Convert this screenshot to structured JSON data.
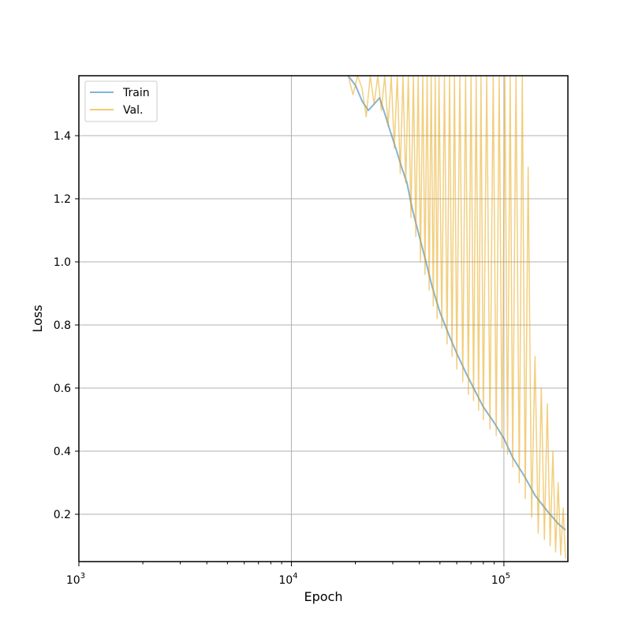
{
  "chart_data": {
    "type": "line",
    "xlabel": "Epoch",
    "ylabel": "Loss",
    "x_scale": "log",
    "xlim": [
      1000,
      200000
    ],
    "ylim": [
      0.05,
      1.59
    ],
    "grid": true,
    "legend_position": "top-left",
    "x_ticks": [
      1000,
      10000,
      100000
    ],
    "x_tick_labels": [
      {
        "base": "10",
        "exp": "3"
      },
      {
        "base": "10",
        "exp": "4"
      },
      {
        "base": "10",
        "exp": "5"
      }
    ],
    "y_ticks": [
      0.2,
      0.4,
      0.6,
      0.8,
      1.0,
      1.2,
      1.4
    ],
    "y_tick_labels": [
      "0.2",
      "0.4",
      "0.6",
      "0.8",
      "1.0",
      "1.2",
      "1.4"
    ],
    "series": [
      {
        "name": "Train",
        "color": "#1f77b4",
        "x": [
          18500,
          20000,
          21500,
          23000,
          24500,
          26000,
          27500,
          29000,
          31000,
          33000,
          35000,
          37000,
          40000,
          43000,
          46000,
          50000,
          55000,
          60000,
          66000,
          72000,
          80000,
          90000,
          100000,
          110000,
          125000,
          140000,
          160000,
          180000,
          195000
        ],
        "y": [
          1.59,
          1.56,
          1.51,
          1.48,
          1.5,
          1.52,
          1.47,
          1.42,
          1.36,
          1.3,
          1.25,
          1.17,
          1.08,
          1.0,
          0.92,
          0.84,
          0.77,
          0.71,
          0.65,
          0.6,
          0.54,
          0.49,
          0.44,
          0.38,
          0.32,
          0.26,
          0.21,
          0.17,
          0.15
        ]
      },
      {
        "name": "Val.",
        "color": "#e69f00",
        "x": [
          18500,
          19500,
          20500,
          21500,
          22500,
          23500,
          24500,
          25500,
          26500,
          27500,
          28500,
          29500,
          30500,
          31500,
          32500,
          33500,
          34500,
          35500,
          36500,
          37500,
          38500,
          39500,
          40500,
          41500,
          42500,
          43500,
          44500,
          45500,
          46500,
          47500,
          48500,
          49500,
          51000,
          52500,
          54000,
          55500,
          57000,
          58500,
          60000,
          62000,
          64000,
          66000,
          68000,
          70000,
          72000,
          74000,
          76000,
          78000,
          80000,
          83000,
          86000,
          89000,
          92000,
          95000,
          98000,
          101000,
          104000,
          107000,
          110000,
          114000,
          118000,
          122000,
          126000,
          130000,
          135000,
          140000,
          145000,
          150000,
          155000,
          160000,
          165000,
          170000,
          175000,
          180000,
          185000,
          190000,
          195000
        ],
        "y": [
          1.59,
          1.53,
          1.59,
          1.55,
          1.46,
          1.59,
          1.5,
          1.59,
          1.48,
          1.59,
          1.43,
          1.59,
          1.36,
          1.59,
          1.28,
          1.59,
          1.25,
          1.59,
          1.14,
          1.59,
          1.08,
          1.59,
          1.0,
          1.59,
          0.96,
          1.59,
          0.91,
          1.59,
          0.86,
          1.59,
          0.82,
          1.59,
          0.79,
          1.59,
          0.74,
          1.59,
          0.7,
          1.59,
          0.66,
          1.59,
          0.62,
          1.59,
          0.58,
          1.59,
          0.56,
          1.59,
          0.53,
          1.59,
          0.5,
          1.59,
          0.47,
          1.59,
          0.45,
          1.59,
          0.41,
          1.59,
          0.39,
          1.59,
          0.35,
          1.59,
          0.3,
          1.59,
          0.25,
          1.3,
          0.19,
          0.7,
          0.14,
          0.6,
          0.12,
          0.55,
          0.1,
          0.4,
          0.08,
          0.3,
          0.07,
          0.22,
          0.06
        ]
      }
    ]
  }
}
